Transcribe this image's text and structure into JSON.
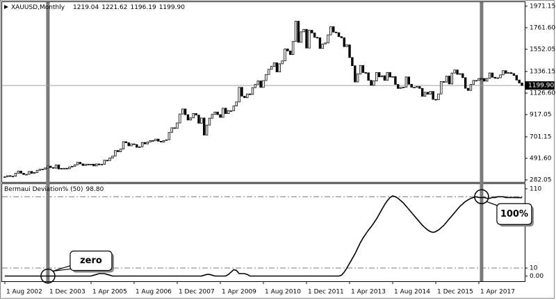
{
  "chart_data": [
    {
      "type": "candlestick",
      "symbol": "XAUUSD,Monthly",
      "ohlc_labels": [
        "1219.04",
        "1221.62",
        "1196.19",
        "1199.90"
      ],
      "categories": [
        "1 Aug 2002",
        null,
        null,
        null,
        null,
        null,
        null,
        null,
        null,
        null,
        null,
        null,
        null,
        null,
        null,
        null,
        "1 Dec 2003",
        null,
        null,
        null,
        null,
        null,
        null,
        null,
        null,
        null,
        null,
        null,
        null,
        null,
        null,
        null,
        "1 Apr 2005",
        null,
        null,
        null,
        null,
        null,
        null,
        null,
        null,
        null,
        null,
        null,
        null,
        null,
        null,
        null,
        "1 Aug 2006",
        null,
        null,
        null,
        null,
        null,
        null,
        null,
        null,
        null,
        null,
        null,
        null,
        null,
        null,
        null,
        "1 Dec 2007",
        null,
        null,
        null,
        null,
        null,
        null,
        null,
        null,
        null,
        null,
        null,
        null,
        null,
        null,
        null,
        "1 Apr 2009",
        null,
        null,
        null,
        null,
        null,
        null,
        null,
        null,
        null,
        null,
        null,
        null,
        null,
        null,
        null,
        "1 Aug 2010",
        null,
        null,
        null,
        null,
        null,
        null,
        null,
        null,
        null,
        null,
        null,
        null,
        null,
        null,
        null,
        "1 Dec 2011",
        null,
        null,
        null,
        null,
        null,
        null,
        null,
        null,
        null,
        null,
        null,
        null,
        null,
        null,
        null,
        "1 Apr 2013",
        null,
        null,
        null,
        null,
        null,
        null,
        null,
        null,
        null,
        null,
        null,
        null,
        null,
        null,
        null,
        "1 Aug 2014",
        null,
        null,
        null,
        null,
        null,
        null,
        null,
        null,
        null,
        null,
        null,
        null,
        null,
        null,
        null,
        "1 Dec 2015",
        null,
        null,
        null,
        null,
        null,
        null,
        null,
        null,
        null,
        null,
        null,
        null,
        null,
        null,
        null,
        "1 Apr 2017",
        null,
        null,
        null,
        null,
        null,
        null,
        null,
        null,
        null,
        null,
        null,
        null,
        null,
        null,
        null,
        null
      ],
      "series": [
        {
          "name": "XAUUSD",
          "color": "#000000",
          "values": [
            312,
            323,
            317,
            318,
            347,
            368,
            347,
            334,
            336,
            364,
            346,
            354,
            375,
            385,
            386,
            398,
            416,
            402,
            396,
            427,
            388,
            394,
            395,
            391,
            407,
            415,
            429,
            453,
            438,
            422,
            434,
            428,
            435,
            418,
            437,
            429,
            433,
            473,
            470,
            495,
            513,
            568,
            556,
            582,
            654,
            643,
            613,
            632,
            626,
            599,
            604,
            646,
            632,
            650,
            665,
            662,
            679,
            658,
            650,
            665,
            673,
            743,
            789,
            783,
            836,
            923,
            972,
            916,
            864,
            885,
            928,
            912,
            833,
            884,
            718,
            815,
            882,
            919,
            942,
            917,
            890,
            979,
            927,
            955,
            955,
            1001,
            1040,
            1182,
            1096,
            1081,
            1118,
            1113,
            1179,
            1212,
            1244,
            1181,
            1248,
            1307,
            1357,
            1386,
            1421,
            1332,
            1411,
            1439,
            1556,
            1536,
            1500,
            1628,
            1825,
            1620,
            1722,
            1746,
            1564,
            1737,
            1711,
            1668,
            1664,
            1560,
            1604,
            1614,
            1692,
            1772,
            1719,
            1713,
            1675,
            1664,
            1578,
            1595,
            1472,
            1392,
            1234,
            1312,
            1395,
            1326,
            1323,
            1250,
            1202,
            1244,
            1326,
            1284,
            1295,
            1250,
            1327,
            1282,
            1287,
            1210,
            1171,
            1182,
            1184,
            1283,
            1212,
            1183,
            1183,
            1190,
            1172,
            1095,
            1134,
            1115,
            1142,
            1065,
            1061,
            1118,
            1238,
            1233,
            1291,
            1215,
            1321,
            1351,
            1309,
            1315,
            1276,
            1173,
            1152,
            1211,
            1249,
            1249,
            1268,
            1268,
            1242,
            1269,
            1322,
            1280,
            1271,
            1275,
            1303,
            1344,
            1318,
            1325,
            1316,
            1298,
            1253,
            1224,
            1199.9
          ]
        }
      ],
      "ylim": [
        262,
        2011
      ],
      "yticks": [
        {
          "value": 1971.15,
          "label": "1971.15"
        },
        {
          "value": 1761.6,
          "label": "1761.60"
        },
        {
          "value": 1552.05,
          "label": "1552.05"
        },
        {
          "value": 1336.15,
          "label": "1336.15"
        },
        {
          "value": 1126.6,
          "label": "1126.60"
        },
        {
          "value": 917.05,
          "label": "917.05"
        },
        {
          "value": 701.15,
          "label": "701.15"
        },
        {
          "value": 491.6,
          "label": "491.60"
        },
        {
          "value": 282.05,
          "label": "282.05"
        }
      ],
      "last_price": {
        "value": 1199.9,
        "label": "1199.90"
      },
      "highlights": [
        16,
        177
      ]
    },
    {
      "type": "line",
      "title": "Bermaui Deviation% (50)",
      "last_value_label": "98.80",
      "series": [
        {
          "name": "Bermaui Deviation%",
          "color": "#000000",
          "values": [
            0,
            0,
            0,
            0,
            0,
            0,
            0,
            0,
            0,
            0,
            0,
            0,
            0,
            0,
            0,
            0,
            0,
            0,
            0,
            0,
            0,
            0,
            0,
            0,
            0,
            0,
            0,
            0,
            0,
            0,
            0,
            0,
            0,
            1,
            2,
            3,
            3,
            3,
            2,
            1,
            0,
            0,
            0,
            0,
            0,
            0,
            0,
            0,
            0,
            0,
            0,
            0,
            0,
            0,
            0,
            0,
            0,
            0,
            0,
            0,
            0,
            0,
            0,
            0,
            0,
            0,
            0,
            0,
            0,
            0,
            0,
            0,
            0,
            0,
            1,
            2,
            2,
            1,
            0,
            0,
            0,
            0,
            0,
            2,
            5,
            8,
            7,
            3,
            3,
            3,
            2,
            0,
            0,
            0,
            0,
            0,
            0,
            0,
            0,
            0,
            0,
            0,
            0,
            0,
            0,
            0,
            0,
            0,
            0,
            0,
            0,
            0,
            0,
            0,
            0,
            0,
            0,
            0,
            0,
            0,
            0,
            0,
            0,
            0,
            0,
            1,
            5,
            10,
            16,
            22,
            28,
            35,
            42,
            48,
            53,
            58,
            62,
            67,
            72,
            78,
            84,
            90,
            95,
            99,
            101,
            100,
            98,
            95,
            92,
            88,
            84,
            80,
            76,
            72,
            68,
            64,
            61,
            58,
            56,
            55,
            56,
            58,
            61,
            64,
            68,
            72,
            76,
            80,
            84,
            88,
            91,
            94,
            96,
            98,
            99,
            100,
            99,
            99,
            99,
            98,
            98,
            99,
            99,
            100,
            100,
            100,
            99,
            99,
            99,
            99,
            98.8,
            98.8,
            98.8
          ]
        }
      ],
      "ylim": [
        -6.6,
        116
      ],
      "yticks": [
        110,
        10,
        {
          "value": 0,
          "label": "0.00"
        }
      ],
      "levels": [
        100,
        10
      ],
      "annotations": [
        {
          "text": "zero",
          "index": 16,
          "value": 0
        },
        {
          "text": "100%",
          "index": 177,
          "value": 100
        }
      ]
    }
  ]
}
